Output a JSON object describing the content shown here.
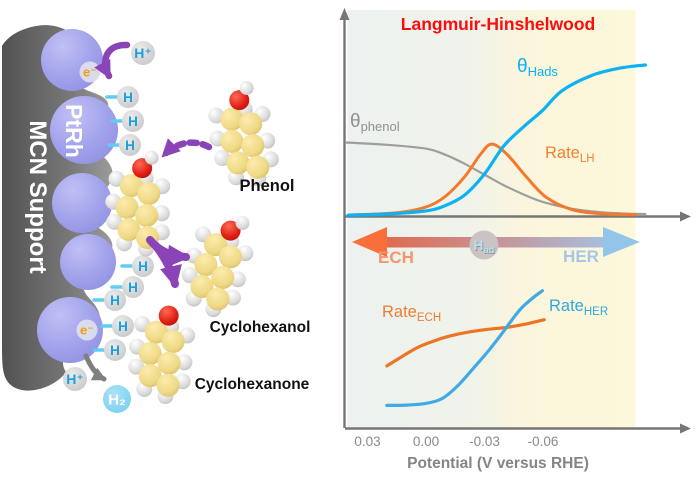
{
  "mechanism": {
    "support_label": "MCN Support",
    "catalyst_label": "PtRh",
    "labels": {
      "phenol": "Phenol",
      "cyclohexanol": "Cyclohexanol",
      "cyclohexanone": "Cyclohexanone"
    },
    "species": {
      "proton": "H⁺",
      "electron": "e⁻",
      "adsorbed_h": "H",
      "hydrogen_gas": "H₂"
    },
    "colors": {
      "support": "#6b6b6b",
      "catalyst": "#9e9ee9",
      "carbon": "#efd985",
      "oxygen": "#dd1b12",
      "hydrogen_sphere": "#d6d6d6",
      "h_label": "#1b9fdd",
      "electron_label": "#f39c12",
      "h2_bubble": "#85d4f0",
      "arrow_purple": "#8a44b8",
      "arrow_gray": "#7f7f7f"
    }
  },
  "chart": {
    "title": "Langmuir-Hinshelwood",
    "title_color": "#fb0d0d",
    "xlabel": "Potential (V versus RHE)",
    "tick_labels": [
      "0.03",
      "0.00",
      "-0.03",
      "-0.06"
    ],
    "axis_color": "#767676",
    "labels": {
      "theta_phenol": {
        "main": "θ",
        "sub": "phenol",
        "color": "#8f8f8f"
      },
      "theta_hads": {
        "main": "θ",
        "sub": "Hads",
        "color": "#0cb2f2"
      },
      "rate_lh": {
        "main": "Rate",
        "sub": "LH",
        "color": "#f5812f"
      },
      "rate_ech": {
        "main": "Rate",
        "sub": "ECH",
        "color": "#ed7d31"
      },
      "rate_her": {
        "main": "Rate",
        "sub": "HER",
        "color": "#2fa8e1"
      }
    },
    "region_arrow": {
      "left_label": "ECH",
      "left_label_color": "#f8936b",
      "left_head_color": "#f86f3a",
      "right_label": "HER",
      "right_label_color": "#a4c6e8",
      "right_head_color": "#93c5ea",
      "gradient": [
        "#e26950",
        "#a9bedd"
      ],
      "center": {
        "main": "H",
        "sub": "ad"
      },
      "center_circle_color": "#c9c3c3",
      "center_text_color": "#b5e2f5"
    }
  },
  "chart_data": [
    {
      "type": "line",
      "panel": "top",
      "x_unit": "V vs RHE",
      "x_ticks": [
        0.03,
        0.0,
        -0.03,
        -0.06
      ],
      "x_decreases_to_right": true,
      "ylim": [
        0,
        1
      ],
      "series": [
        {
          "name": "theta_phenol",
          "color": "#9e9e9e",
          "width": 2.2,
          "x": [
            0.041,
            0.02,
            0.0,
            -0.01,
            -0.02,
            -0.03,
            -0.04,
            -0.05,
            -0.06,
            -0.075,
            -0.09,
            -0.105,
            -0.113
          ],
          "y": [
            0.48,
            0.465,
            0.44,
            0.4,
            0.34,
            0.27,
            0.2,
            0.14,
            0.09,
            0.045,
            0.022,
            0.012,
            0.01
          ]
        },
        {
          "name": "rate_lh",
          "color": "#f5792d",
          "width": 3,
          "x": [
            0.038,
            0.015,
            0.0,
            -0.01,
            -0.02,
            -0.028,
            -0.034,
            -0.042,
            -0.052,
            -0.062,
            -0.075,
            -0.09,
            -0.108
          ],
          "y": [
            0.004,
            0.018,
            0.055,
            0.125,
            0.255,
            0.4,
            0.47,
            0.4,
            0.25,
            0.12,
            0.04,
            0.012,
            0.005
          ]
        },
        {
          "name": "theta_hads",
          "color": "#0cb2f2",
          "width": 3.2,
          "x": [
            0.04,
            0.02,
            0.0,
            -0.01,
            -0.02,
            -0.03,
            -0.04,
            -0.05,
            -0.06,
            -0.07,
            -0.085,
            -0.1,
            -0.113
          ],
          "y": [
            0.002,
            0.01,
            0.03,
            0.065,
            0.135,
            0.27,
            0.455,
            0.58,
            0.69,
            0.82,
            0.92,
            0.97,
            0.99
          ]
        }
      ]
    },
    {
      "type": "line",
      "panel": "bottom",
      "x_unit": "V vs RHE",
      "x_ticks": [
        0.03,
        0.0,
        -0.03,
        -0.06
      ],
      "xlabel": "Potential (V versus RHE)",
      "ylim": [
        0,
        1
      ],
      "series": [
        {
          "name": "rate_ech",
          "color": "#ec7424",
          "width": 3.2,
          "x": [
            0.02,
            0.012,
            0.004,
            -0.004,
            -0.012,
            -0.022,
            -0.032,
            -0.042,
            -0.052,
            -0.061
          ],
          "y": [
            0.45,
            0.52,
            0.585,
            0.63,
            0.665,
            0.695,
            0.715,
            0.73,
            0.755,
            0.785
          ]
        },
        {
          "name": "rate_her",
          "color": "#41aae6",
          "width": 3.2,
          "x": [
            0.02,
            0.01,
            0.001,
            -0.008,
            -0.016,
            -0.024,
            -0.032,
            -0.04,
            -0.048,
            -0.054,
            -0.06
          ],
          "y": [
            0.164,
            0.166,
            0.176,
            0.21,
            0.3,
            0.425,
            0.555,
            0.7,
            0.85,
            0.93,
            0.995
          ]
        }
      ]
    }
  ]
}
